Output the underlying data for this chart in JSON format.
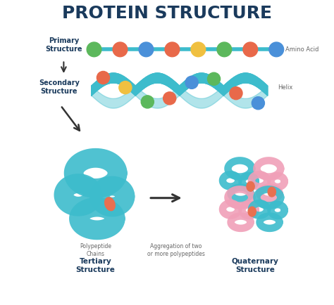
{
  "title": "PROTEIN STRUCTURE",
  "title_color": "#1a3a5c",
  "title_fontsize": 18,
  "bg_color": "#ffffff",
  "teal": "#3dbccc",
  "teal_dark": "#2aa8b8",
  "pink": "#f0a0b8",
  "label_color": "#666666",
  "arrow_color": "#333333",
  "bead_colors_primary": [
    "#5cb85c",
    "#e8694a",
    "#4a90d9",
    "#e8694a",
    "#f0c040",
    "#5cb85c",
    "#e8694a",
    "#4a90d9"
  ],
  "bead_colors_helix": [
    "#e8694a",
    "#f0c040",
    "#5cb85c",
    "#e8694a",
    "#4a90d9",
    "#5cb85c",
    "#e8694a",
    "#4a90d9"
  ],
  "primary_label": "Primary\nStructure",
  "secondary_label": "Secondary\nStructure",
  "tertiary_label": "Tertiary\nStructure",
  "quaternary_label": "Quaternary\nStructure",
  "amino_acid_label": "Amino Acid",
  "helix_label": "Helix",
  "polypeptide_label": "Polypeptide\nChains",
  "aggregation_label": "Aggregation of two\nor more polypeptides",
  "orange_accent": "#e87050"
}
